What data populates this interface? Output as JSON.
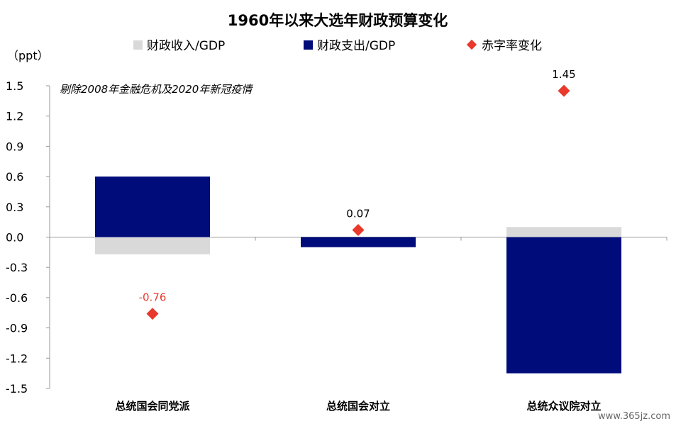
{
  "chart_data": {
    "type": "bar",
    "title": "1960年以来大选年财政预算变化",
    "unit_label": "（ppt）",
    "annotation": "剔除2008年金融危机及2020年新冠疫情",
    "categories": [
      "总统国会同党派",
      "总统国会对立",
      "总统众议院对立"
    ],
    "ylim": [
      -1.5,
      1.5
    ],
    "yticks": [
      "1.5",
      "1.2",
      "0.9",
      "0.6",
      "0.3",
      "0.0",
      "-0.3",
      "-0.6",
      "-0.9",
      "-1.2",
      "-1.5"
    ],
    "ytick_values": [
      1.5,
      1.2,
      0.9,
      0.6,
      0.3,
      0.0,
      -0.3,
      -0.6,
      -0.9,
      -1.2,
      -1.5
    ],
    "negative_tick_color": "#e8392c",
    "grid": false,
    "legend_position": "top",
    "series": [
      {
        "name": "财政收入/GDP",
        "kind": "bar",
        "color": "#d9d9d9",
        "values": [
          -0.17,
          0.0,
          0.1
        ]
      },
      {
        "name": "财政支出/GDP",
        "kind": "bar",
        "color": "#000c7a",
        "values": [
          0.6,
          -0.1,
          -1.35
        ]
      },
      {
        "name": "赤字率变化",
        "kind": "marker",
        "color": "#e8392c",
        "values": [
          -0.76,
          0.07,
          1.45
        ],
        "labels": [
          "-0.76",
          "0.07",
          "1.45"
        ],
        "label_colors": [
          "#e8392c",
          "#000000",
          "#000000"
        ]
      }
    ]
  },
  "watermark": "www.365jz.com"
}
